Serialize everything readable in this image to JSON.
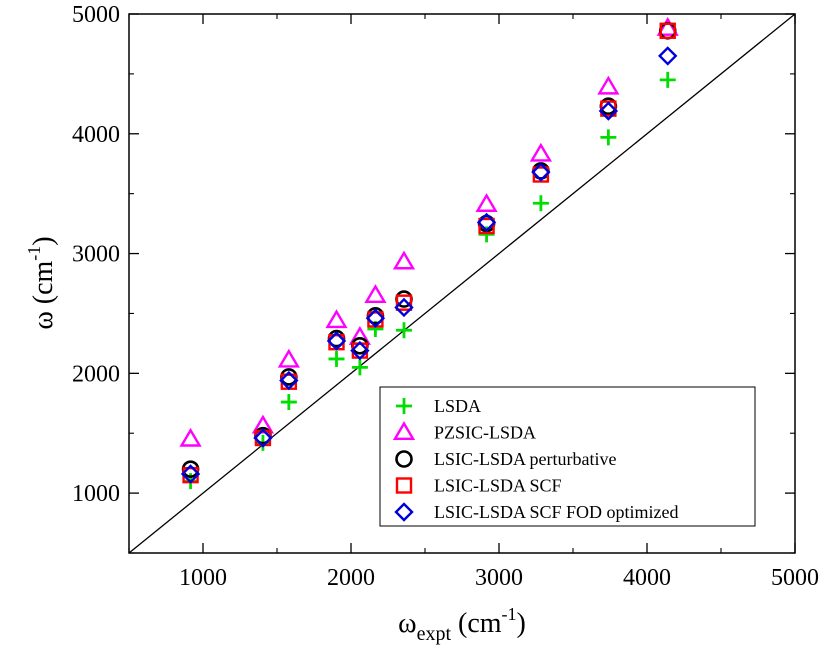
{
  "chart_data": {
    "type": "scatter",
    "xlabel": "ω",
    "xlabel_sub": "expt",
    "xlabel_unit_open": " (cm",
    "xlabel_unit_exp": "-1",
    "xlabel_unit_close": ")",
    "ylabel": "ω (cm",
    "ylabel_exp": "-1",
    "ylabel_close": ")",
    "xlim": [
      500,
      5000
    ],
    "ylim": [
      500,
      5000
    ],
    "xticks": [
      1000,
      2000,
      3000,
      4000,
      5000
    ],
    "yticks": [
      1000,
      2000,
      3000,
      4000,
      5000
    ],
    "xtick_labels": [
      "1000",
      "2000",
      "3000",
      "4000",
      "5000"
    ],
    "ytick_labels": [
      "1000",
      "2000",
      "3000",
      "4000",
      "5000"
    ],
    "reference_line": "y = x",
    "legend_position": "bottom-right",
    "series": [
      {
        "name": "LSDA",
        "marker": "plus",
        "color": "#00dd00",
        "points": [
          [
            916,
            1100
          ],
          [
            1405,
            1420
          ],
          [
            1580,
            1760
          ],
          [
            1902,
            2120
          ],
          [
            2060,
            2050
          ],
          [
            2165,
            2370
          ],
          [
            2358,
            2360
          ],
          [
            2916,
            3160
          ],
          [
            3283,
            3420
          ],
          [
            3739,
            3970
          ],
          [
            4140,
            4450
          ]
        ]
      },
      {
        "name": "PZSIC-LSDA",
        "marker": "triangle",
        "color": "#ff00ff",
        "points": [
          [
            916,
            1450
          ],
          [
            1405,
            1560
          ],
          [
            1580,
            2110
          ],
          [
            1902,
            2440
          ],
          [
            2060,
            2300
          ],
          [
            2165,
            2650
          ],
          [
            2358,
            2930
          ],
          [
            2916,
            3410
          ],
          [
            3283,
            3830
          ],
          [
            3739,
            4390
          ],
          [
            4140,
            4880
          ]
        ]
      },
      {
        "name": "LSIC-LSDA perturbative",
        "marker": "circle",
        "color": "#000000",
        "points": [
          [
            916,
            1200
          ],
          [
            1405,
            1480
          ],
          [
            1580,
            1970
          ],
          [
            1902,
            2290
          ],
          [
            2060,
            2230
          ],
          [
            2165,
            2480
          ],
          [
            2358,
            2620
          ],
          [
            2916,
            3250
          ],
          [
            3283,
            3690
          ],
          [
            3739,
            4230
          ],
          [
            4140,
            4860
          ]
        ]
      },
      {
        "name": "LSIC-LSDA SCF",
        "marker": "square",
        "color": "#ff0000",
        "points": [
          [
            916,
            1150
          ],
          [
            1405,
            1460
          ],
          [
            1580,
            1930
          ],
          [
            1902,
            2260
          ],
          [
            2060,
            2190
          ],
          [
            2165,
            2450
          ],
          [
            2358,
            2590
          ],
          [
            2916,
            3230
          ],
          [
            3283,
            3660
          ],
          [
            3739,
            4210
          ],
          [
            4140,
            4860
          ]
        ]
      },
      {
        "name": "LSIC-LSDA SCF FOD optimized",
        "marker": "diamond",
        "color": "#0000dd",
        "points": [
          [
            916,
            1160
          ],
          [
            1405,
            1460
          ],
          [
            1580,
            1940
          ],
          [
            1902,
            2270
          ],
          [
            2060,
            2190
          ],
          [
            2165,
            2460
          ],
          [
            2358,
            2550
          ],
          [
            2916,
            3260
          ],
          [
            3283,
            3680
          ],
          [
            3739,
            4190
          ],
          [
            4140,
            4650
          ]
        ]
      }
    ]
  }
}
